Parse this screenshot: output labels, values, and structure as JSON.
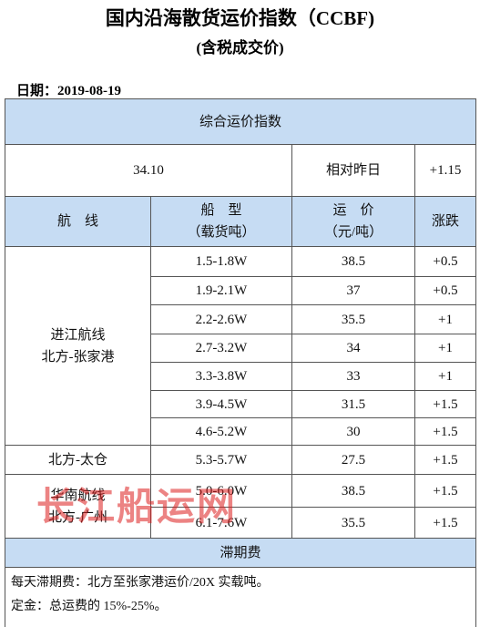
{
  "header": {
    "title": "国内沿海散货运价指数（CCBF)",
    "subtitle": "(含税成交价)"
  },
  "date": "日期：2019-08-19",
  "table": {
    "composite_title": "综合运价指数",
    "composite_value": "34.10",
    "relative_label": "相对昨日",
    "relative_change": "+1.15",
    "columns": [
      [
        "航　线"
      ],
      [
        "船　型",
        "（载货吨）"
      ],
      [
        "运　价",
        "（元/吨）"
      ],
      [
        "涨跌"
      ]
    ],
    "groups": [
      {
        "route": [
          "进江航线",
          "北方-张家港"
        ],
        "rows": [
          [
            "1.5-1.8W",
            "38.5",
            "+0.5"
          ],
          [
            "1.9-2.1W",
            "37",
            "+0.5"
          ],
          [
            "2.2-2.6W",
            "35.5",
            "+1"
          ],
          [
            "2.7-3.2W",
            "34",
            "+1"
          ],
          [
            "3.3-3.8W",
            "33",
            "+1"
          ],
          [
            "3.9-4.5W",
            "31.5",
            "+1.5"
          ],
          [
            "4.6-5.2W",
            "30",
            "+1.5"
          ]
        ]
      },
      {
        "route": [
          "北方-太仓"
        ],
        "rows": [
          [
            "5.3-5.7W",
            "27.5",
            "+1.5"
          ]
        ]
      },
      {
        "route": [
          "华南航线",
          "北方-广州"
        ],
        "rows": [
          [
            "5.0-6.0W",
            "38.5",
            "+1.5"
          ],
          [
            "6.1-7.6W",
            "35.5",
            "+1.5"
          ]
        ]
      }
    ],
    "demurrage_title": "滞期费",
    "notes": [
      "每天滞期费：北方至张家港运价/20X 实载吨。",
      "定金：总运费的 15%-25%。"
    ]
  },
  "watermark": "长江船运网"
}
